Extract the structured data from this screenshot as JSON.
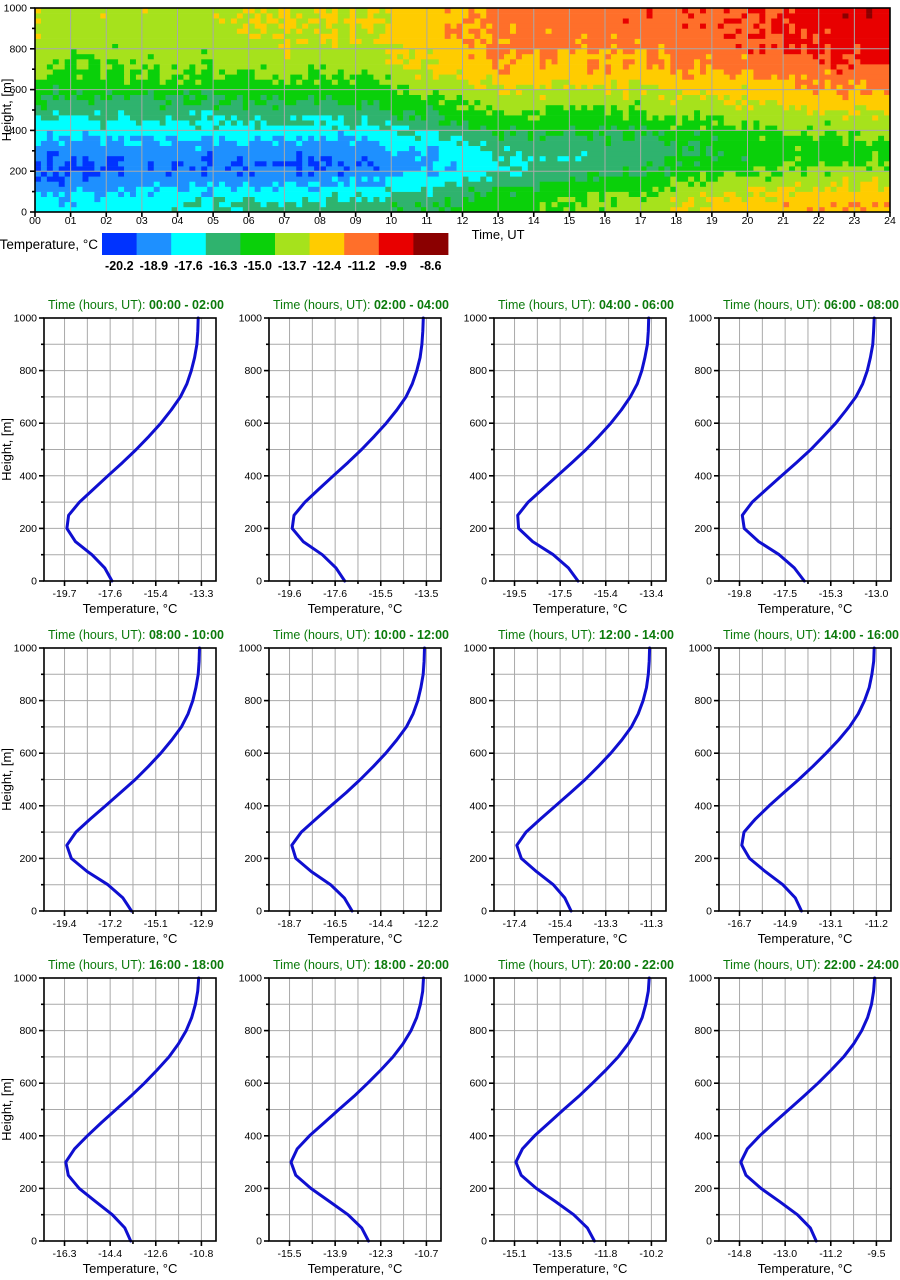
{
  "style": {
    "background": "#ffffff",
    "curve_color": "#0f0fd0",
    "title_color": "#0b7a0b",
    "grid_color": "#a9a9a9",
    "axis_color": "#000000",
    "text_color": "#000000"
  },
  "chart_data": [
    {
      "type": "heatmap",
      "xlabel": "Time, UT",
      "ylabel": "Height, [m]",
      "xlim": [
        0,
        24
      ],
      "ylim": [
        0,
        1000
      ],
      "x_tick_labels": [
        "00",
        "01",
        "02",
        "03",
        "04",
        "05",
        "06",
        "07",
        "08",
        "09",
        "10",
        "11",
        "12",
        "13",
        "14",
        "15",
        "16",
        "17",
        "18",
        "19",
        "20",
        "21",
        "22",
        "23",
        "24"
      ],
      "y_ticks": [
        0,
        200,
        400,
        600,
        800,
        1000
      ],
      "grid": true,
      "legend_title": "Temperature, °C",
      "levels": [
        -20.2,
        -18.9,
        -17.6,
        -16.3,
        -15.0,
        -13.7,
        -12.4,
        -11.2,
        -9.9,
        -8.6
      ],
      "level_colors": [
        "#0033ff",
        "#1e90ff",
        "#00ffff",
        "#2fb36e",
        "#0ad00a",
        "#a6e21c",
        "#ffcc00",
        "#ff6f2a",
        "#e80000",
        "#8b0000"
      ],
      "time_step_min": 10,
      "height_step_m": 25,
      "source": "binned mean temperature interpolated from the twelve 2-hour profiles below with turbulent speckle"
    },
    {
      "type": "line",
      "title_prefix": "Time (hours, UT): ",
      "window": "00:00 - 02:00",
      "xlabel": "Temperature, °C",
      "ylabel": "Height, [m]",
      "x_ticks": [
        "-19.7",
        "-17.6",
        "-15.4",
        "-13.3"
      ],
      "y_ticks": [
        0,
        200,
        400,
        600,
        800,
        1000
      ],
      "heights": [
        0,
        50,
        100,
        150,
        200,
        250,
        300,
        350,
        400,
        450,
        500,
        550,
        600,
        650,
        700,
        750,
        800,
        850,
        900,
        950,
        1000
      ],
      "temps": [
        -17.48,
        -17.82,
        -18.42,
        -19.19,
        -19.59,
        -19.51,
        -19.0,
        -18.33,
        -17.67,
        -16.99,
        -16.35,
        -15.75,
        -15.2,
        -14.71,
        -14.28,
        -13.98,
        -13.77,
        -13.62,
        -13.51,
        -13.47,
        -13.45
      ]
    },
    {
      "type": "line",
      "title_prefix": "Time (hours, UT): ",
      "window": "02:00 - 04:00",
      "xlabel": "Temperature, °C",
      "ylabel": "Height, [m]",
      "x_ticks": [
        "-19.6",
        "-17.6",
        "-15.5",
        "-13.5"
      ],
      "y_ticks": [
        0,
        200,
        400,
        600,
        800,
        1000
      ],
      "heights": [
        0,
        50,
        100,
        150,
        200,
        250,
        300,
        350,
        400,
        450,
        500,
        550,
        600,
        650,
        700,
        750,
        800,
        850,
        900,
        950,
        1000
      ],
      "temps": [
        -17.14,
        -17.53,
        -18.14,
        -18.99,
        -19.48,
        -19.4,
        -18.91,
        -18.28,
        -17.65,
        -17.0,
        -16.39,
        -15.82,
        -15.29,
        -14.82,
        -14.41,
        -14.13,
        -13.93,
        -13.78,
        -13.7,
        -13.66,
        -13.64
      ]
    },
    {
      "type": "line",
      "title_prefix": "Time (hours, UT): ",
      "window": "04:00 - 06:00",
      "xlabel": "Temperature, °C",
      "ylabel": "Height, [m]",
      "x_ticks": [
        "-19.5",
        "-17.5",
        "-15.4",
        "-13.4"
      ],
      "y_ticks": [
        0,
        200,
        400,
        600,
        800,
        1000
      ],
      "heights": [
        0,
        50,
        100,
        150,
        200,
        250,
        300,
        350,
        400,
        450,
        500,
        550,
        600,
        650,
        700,
        750,
        800,
        850,
        900,
        950,
        1000
      ],
      "temps": [
        -16.67,
        -17.1,
        -17.77,
        -18.69,
        -19.32,
        -19.36,
        -18.89,
        -18.24,
        -17.59,
        -16.94,
        -16.31,
        -15.74,
        -15.21,
        -14.74,
        -14.34,
        -14.03,
        -13.83,
        -13.69,
        -13.58,
        -13.54,
        -13.52
      ]
    },
    {
      "type": "line",
      "title_prefix": "Time (hours, UT): ",
      "window": "06:00 - 08:00",
      "xlabel": "Temperature, °C",
      "ylabel": "Height, [m]",
      "x_ticks": [
        "-19.8",
        "-17.5",
        "-15.3",
        "-13.0"
      ],
      "y_ticks": [
        0,
        200,
        400,
        600,
        800,
        1000
      ],
      "heights": [
        0,
        50,
        100,
        150,
        200,
        250,
        300,
        350,
        400,
        450,
        500,
        550,
        600,
        650,
        700,
        750,
        800,
        850,
        900,
        950,
        1000
      ],
      "temps": [
        -16.58,
        -17.08,
        -17.83,
        -18.85,
        -19.57,
        -19.66,
        -19.17,
        -18.44,
        -17.71,
        -16.97,
        -16.26,
        -15.63,
        -15.02,
        -14.5,
        -14.02,
        -13.68,
        -13.45,
        -13.3,
        -13.18,
        -13.14,
        -13.11
      ]
    },
    {
      "type": "line",
      "title_prefix": "Time (hours, UT): ",
      "window": "08:00 - 10:00",
      "xlabel": "Temperature, °C",
      "ylabel": "Height, [m]",
      "x_ticks": [
        "-19.4",
        "-17.2",
        "-15.1",
        "-12.9"
      ],
      "y_ticks": [
        0,
        200,
        400,
        600,
        800,
        1000
      ],
      "heights": [
        0,
        50,
        100,
        150,
        200,
        250,
        300,
        350,
        400,
        450,
        500,
        550,
        600,
        650,
        700,
        750,
        800,
        850,
        900,
        950,
        1000
      ],
      "temps": [
        -16.22,
        -16.63,
        -17.34,
        -18.32,
        -19.08,
        -19.29,
        -18.86,
        -18.17,
        -17.45,
        -16.74,
        -16.04,
        -15.41,
        -14.83,
        -14.31,
        -13.85,
        -13.53,
        -13.31,
        -13.16,
        -13.05,
        -13.01,
        -12.99
      ]
    },
    {
      "type": "line",
      "title_prefix": "Time (hours, UT): ",
      "window": "10:00 - 12:00",
      "xlabel": "Temperature, °C",
      "ylabel": "Height, [m]",
      "x_ticks": [
        "-18.7",
        "-16.5",
        "-14.4",
        "-12.2"
      ],
      "y_ticks": [
        0,
        200,
        400,
        600,
        800,
        1000
      ],
      "heights": [
        0,
        50,
        100,
        150,
        200,
        250,
        300,
        350,
        400,
        450,
        500,
        550,
        600,
        650,
        700,
        750,
        800,
        850,
        900,
        950,
        1000
      ],
      "temps": [
        -15.73,
        -16.1,
        -16.75,
        -17.66,
        -18.4,
        -18.59,
        -18.14,
        -17.44,
        -16.73,
        -16.01,
        -15.34,
        -14.71,
        -14.13,
        -13.61,
        -13.15,
        -12.83,
        -12.61,
        -12.46,
        -12.35,
        -12.31,
        -12.29
      ]
    },
    {
      "type": "line",
      "title_prefix": "Time (hours, UT): ",
      "window": "12:00 - 14:00",
      "xlabel": "Temperature, °C",
      "ylabel": "Height, [m]",
      "x_ticks": [
        "-17.4",
        "-15.4",
        "-13.3",
        "-11.3"
      ],
      "y_ticks": [
        0,
        200,
        400,
        600,
        800,
        1000
      ],
      "heights": [
        0,
        50,
        100,
        150,
        200,
        250,
        300,
        350,
        400,
        450,
        500,
        550,
        600,
        650,
        700,
        750,
        800,
        850,
        900,
        950,
        1000
      ],
      "temps": [
        -14.88,
        -15.16,
        -15.67,
        -16.42,
        -17.1,
        -17.3,
        -16.89,
        -16.24,
        -15.57,
        -14.9,
        -14.25,
        -13.66,
        -13.11,
        -12.62,
        -12.19,
        -11.89,
        -11.67,
        -11.52,
        -11.44,
        -11.4,
        -11.38
      ]
    },
    {
      "type": "line",
      "title_prefix": "Time (hours, UT): ",
      "window": "14:00 - 16:00",
      "xlabel": "Temperature, °C",
      "ylabel": "Height, [m]",
      "x_ticks": [
        "-16.7",
        "-14.9",
        "-13.1",
        "-11.2"
      ],
      "y_ticks": [
        0,
        200,
        400,
        600,
        800,
        1000
      ],
      "heights": [
        0,
        50,
        100,
        150,
        200,
        250,
        300,
        350,
        400,
        450,
        500,
        550,
        600,
        650,
        700,
        750,
        800,
        850,
        900,
        950,
        1000
      ],
      "temps": [
        -14.21,
        -14.46,
        -14.96,
        -15.66,
        -16.3,
        -16.61,
        -16.52,
        -16.06,
        -15.51,
        -14.92,
        -14.32,
        -13.75,
        -13.22,
        -12.72,
        -12.28,
        -11.93,
        -11.68,
        -11.49,
        -11.38,
        -11.31,
        -11.29
      ]
    },
    {
      "type": "line",
      "title_prefix": "Time (hours, UT): ",
      "window": "16:00 - 18:00",
      "xlabel": "Temperature, °C",
      "ylabel": "Height, [m]",
      "x_ticks": [
        "-16.3",
        "-14.4",
        "-12.6",
        "-10.8"
      ],
      "y_ticks": [
        0,
        200,
        400,
        600,
        800,
        1000
      ],
      "heights": [
        0,
        50,
        100,
        150,
        200,
        250,
        300,
        350,
        400,
        450,
        500,
        550,
        600,
        650,
        700,
        750,
        800,
        850,
        900,
        950,
        1000
      ],
      "temps": [
        -13.64,
        -13.88,
        -14.38,
        -15.05,
        -15.71,
        -16.15,
        -16.25,
        -15.9,
        -15.38,
        -14.82,
        -14.23,
        -13.64,
        -13.09,
        -12.58,
        -12.1,
        -11.72,
        -11.41,
        -11.19,
        -11.04,
        -10.95,
        -10.91
      ]
    },
    {
      "type": "line",
      "title_prefix": "Time (hours, UT): ",
      "window": "18:00 - 20:00",
      "xlabel": "Temperature, °C",
      "ylabel": "Height, [m]",
      "x_ticks": [
        "-15.5",
        "-13.9",
        "-12.3",
        "-10.7"
      ],
      "y_ticks": [
        0,
        200,
        400,
        600,
        800,
        1000
      ],
      "heights": [
        0,
        50,
        100,
        150,
        200,
        250,
        300,
        350,
        400,
        450,
        500,
        550,
        600,
        650,
        700,
        750,
        800,
        850,
        900,
        950,
        1000
      ],
      "temps": [
        -12.73,
        -12.97,
        -13.45,
        -14.09,
        -14.75,
        -15.28,
        -15.45,
        -15.23,
        -14.8,
        -14.28,
        -13.77,
        -13.24,
        -12.76,
        -12.3,
        -11.87,
        -11.52,
        -11.24,
        -11.04,
        -10.91,
        -10.83,
        -10.8
      ]
    },
    {
      "type": "line",
      "title_prefix": "Time (hours, UT): ",
      "window": "20:00 - 22:00",
      "xlabel": "Temperature, °C",
      "ylabel": "Height, [m]",
      "x_ticks": [
        "-15.1",
        "-13.5",
        "-11.8",
        "-10.2"
      ],
      "y_ticks": [
        0,
        200,
        400,
        600,
        800,
        1000
      ],
      "heights": [
        0,
        50,
        100,
        150,
        200,
        250,
        300,
        350,
        400,
        450,
        500,
        550,
        600,
        650,
        700,
        750,
        800,
        850,
        900,
        950,
        1000
      ],
      "temps": [
        -12.24,
        -12.49,
        -12.98,
        -13.63,
        -14.32,
        -14.86,
        -15.05,
        -14.82,
        -14.38,
        -13.86,
        -13.34,
        -12.8,
        -12.31,
        -11.83,
        -11.39,
        -11.03,
        -10.74,
        -10.53,
        -10.4,
        -10.31,
        -10.28
      ]
    },
    {
      "type": "line",
      "title_prefix": "Time (hours, UT): ",
      "window": "22:00 - 24:00",
      "xlabel": "Temperature, °C",
      "ylabel": "Height, [m]",
      "x_ticks": [
        "-14.8",
        "-13.0",
        "-11.2",
        "-9.5"
      ],
      "y_ticks": [
        0,
        200,
        400,
        600,
        800,
        1000
      ],
      "heights": [
        0,
        50,
        100,
        150,
        200,
        250,
        300,
        350,
        400,
        450,
        500,
        550,
        600,
        650,
        700,
        750,
        800,
        850,
        900,
        950,
        1000
      ],
      "temps": [
        -11.83,
        -12.06,
        -12.56,
        -13.25,
        -13.97,
        -14.55,
        -14.75,
        -14.5,
        -14.02,
        -13.46,
        -12.89,
        -12.31,
        -11.76,
        -11.25,
        -10.77,
        -10.38,
        -10.07,
        -9.84,
        -9.69,
        -9.61,
        -9.57
      ]
    }
  ]
}
